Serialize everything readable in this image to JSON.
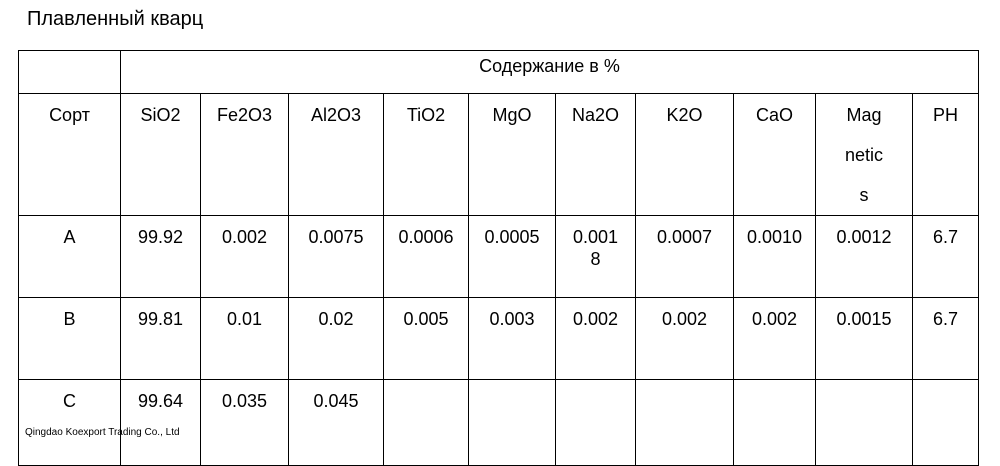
{
  "title": "Плавленный кварц",
  "table": {
    "group_header": "Содержание в %",
    "header": [
      "Сорт",
      "SiO2",
      "Fe2O3",
      "Al2O3",
      "TiO2",
      "MgO",
      "Na2O",
      "K2O",
      "CaO",
      "Magnetics",
      "PH"
    ],
    "rows": [
      [
        "A",
        "99.92",
        "0.002",
        "0.0075",
        "0.0006",
        "0.0005",
        "0.0018",
        "0.0007",
        "0.0010",
        "0.0012",
        "6.7"
      ],
      [
        "B",
        "99.81",
        "0.01",
        "0.02",
        "0.005",
        "0.003",
        "0.002",
        "0.002",
        "0.002",
        "0.0015",
        "6.7"
      ],
      [
        "C",
        "99.64",
        "0.035",
        "0.045"
      ]
    ]
  },
  "footer": "Qingdao Koexport Trading Co., Ltd"
}
